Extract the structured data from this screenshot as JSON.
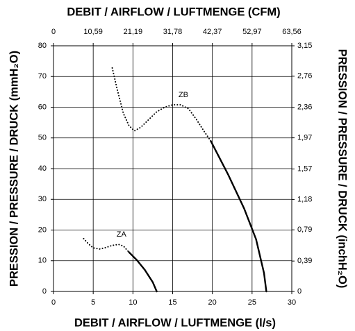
{
  "chart_data": {
    "type": "line",
    "xlabel": "DEBIT / AIRFLOW / LUFTMENGE (l/s)",
    "x2label": "DEBIT / AIRFLOW / LUFTMENGE (CFM)",
    "ylabel": "PRESSION / PRESSURE / DRUCK (mmH₂O)",
    "y2label": "PRESSION / PRESSURE / DRUCK (inchH₂O)",
    "xlim": [
      0,
      30
    ],
    "xticks": [
      0,
      5,
      10,
      15,
      20,
      25,
      30
    ],
    "x2lim": [
      0,
      63.56
    ],
    "x2ticks": [
      0,
      {
        "value": 10.59,
        "label": "10,59"
      },
      {
        "value": 21.19,
        "label": "21,19"
      },
      {
        "value": 31.78,
        "label": "31,78"
      },
      {
        "value": 42.37,
        "label": "42,37"
      },
      {
        "value": 52.97,
        "label": "52,97"
      },
      {
        "value": 63.56,
        "label": "63,56"
      }
    ],
    "ylim": [
      0,
      80
    ],
    "yticks": [
      0,
      10,
      20,
      30,
      40,
      50,
      60,
      70,
      80
    ],
    "y2lim": [
      0,
      3.15
    ],
    "y2ticks": [
      0,
      {
        "value": 0.39,
        "label": "0,39"
      },
      {
        "value": 0.79,
        "label": "0,79"
      },
      {
        "value": 1.18,
        "label": "1,18"
      },
      {
        "value": 1.57,
        "label": "1,57"
      },
      {
        "value": 1.97,
        "label": "1,97"
      },
      {
        "value": 2.36,
        "label": "2,36"
      },
      {
        "value": 2.76,
        "label": "2,76"
      },
      {
        "value": 3.15,
        "label": "3,15"
      }
    ],
    "grid": true,
    "series": [
      {
        "name": "ZA",
        "color": "#000000",
        "segments": [
          {
            "style": "dotted",
            "x": [
              3.8,
              4.4,
              5,
              5.8,
              6.6,
              7.4,
              8.2,
              8.8,
              9.5
            ],
            "values": [
              17.2,
              15.5,
              14.2,
              13.8,
              14.3,
              15,
              15.3,
              14.8,
              12.8
            ]
          },
          {
            "style": "solid",
            "x": [
              9.5,
              10.5,
              11.5,
              12.5,
              13
            ],
            "values": [
              12.8,
              10.2,
              7,
              3,
              0
            ]
          }
        ]
      },
      {
        "name": "ZB",
        "color": "#000000",
        "segments": [
          {
            "style": "dotted",
            "x": [
              7.4,
              8,
              8.8,
              9.5,
              10.2,
              11,
              12,
              13,
              14,
              15,
              16,
              17,
              18,
              19,
              19.8
            ],
            "values": [
              72.8,
              66,
              58,
              54,
              52.3,
              53.5,
              56,
              58.5,
              60,
              60.8,
              60.8,
              59.5,
              56,
              52,
              49
            ]
          },
          {
            "style": "solid",
            "x": [
              19.8,
              22,
              24,
              25.5,
              26.5,
              26.8
            ],
            "values": [
              49,
              38,
              27,
              17,
              6,
              0
            ]
          }
        ]
      }
    ]
  }
}
